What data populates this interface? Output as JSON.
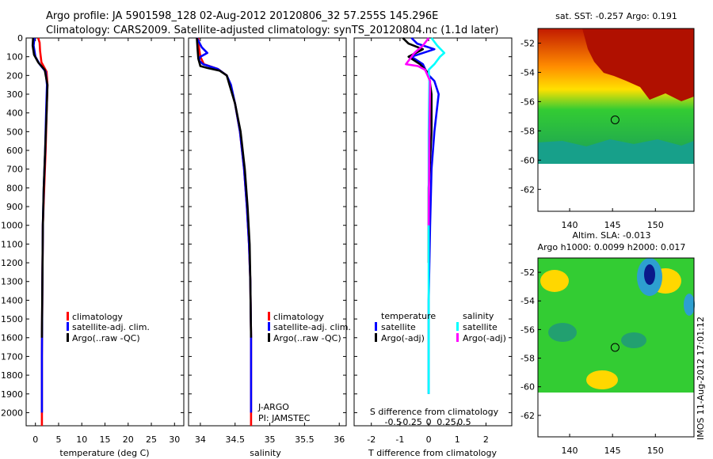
{
  "header": {
    "line1": "Argo profile: JA 5901598_128 02-Aug-2012 20120806_32 57.255S 145.296E",
    "line2": "Climatology: CARS2009. Satellite-adjusted climatology: synTS_20120804.nc (1.1d later)"
  },
  "stamp": "IMOS 11-Aug-2012 17:01:12",
  "colors": {
    "climatology": "#ff0000",
    "satellite_adj": "#0000ff",
    "argo": "#000000",
    "salinity_sat": "#00ffff",
    "salinity_argo": "#ff00ff"
  },
  "chart_data": [
    {
      "type": "line",
      "name": "temperature",
      "xlabel": "temperature (deg C)",
      "ylabel": "",
      "xlim": [
        -2,
        32
      ],
      "ylim": [
        2070,
        0
      ],
      "xticks": [
        "0",
        "5",
        "10",
        "15",
        "20",
        "25",
        "30"
      ],
      "yticks": [
        "0",
        "100",
        "200",
        "300",
        "400",
        "500",
        "600",
        "700",
        "800",
        "900",
        "1000",
        "1100",
        "1200",
        "1300",
        "1400",
        "1500",
        "1600",
        "1700",
        "1800",
        "1900",
        "2000"
      ],
      "legend": [
        "climatology",
        "satellite-adj. clim.",
        "Argo(..raw -QC)"
      ],
      "series": [
        {
          "name": "climatology",
          "color": "#ff0000",
          "x": [
            0.6,
            0.9,
            1.0,
            1.3,
            2.4,
            2.6,
            2.4,
            2.2,
            1.9,
            1.6,
            1.5,
            1.4,
            1.4
          ],
          "y": [
            0,
            25,
            70,
            130,
            180,
            250,
            400,
            600,
            800,
            1000,
            1300,
            1700,
            2070
          ]
        },
        {
          "name": "satellite-adj. clim.",
          "color": "#0000ff",
          "x": [
            -0.2,
            -0.4,
            0.0,
            0.9,
            2.2,
            2.5,
            2.3,
            2.1,
            1.8,
            1.6,
            1.5,
            1.4,
            1.4
          ],
          "y": [
            0,
            40,
            100,
            140,
            180,
            250,
            400,
            600,
            800,
            1000,
            1300,
            1700,
            2000
          ]
        },
        {
          "name": "Argo(..raw -QC)",
          "color": "#000000",
          "x": [
            -0.5,
            -0.6,
            -0.3,
            0.6,
            2.0,
            2.6,
            2.4,
            2.1,
            1.8,
            1.6,
            1.5,
            1.4
          ],
          "y": [
            0,
            40,
            90,
            130,
            170,
            250,
            400,
            600,
            800,
            1000,
            1300,
            1600
          ]
        }
      ]
    },
    {
      "type": "line",
      "name": "salinity",
      "xlabel": "salinity",
      "ylabel": "",
      "xlim": [
        33.83,
        36.1
      ],
      "ylim": [
        2070,
        0
      ],
      "xticks": [
        "34",
        "34.5",
        "35",
        "35.5",
        "36"
      ],
      "legend": [
        "climatology",
        "satellite-adj. clim.",
        "Argo(..raw -QC)"
      ],
      "annotation": [
        "J-ARGO",
        "PI: JAMSTEC"
      ],
      "series": [
        {
          "name": "climatology",
          "color": "#ff0000",
          "x": [
            33.97,
            33.98,
            34.0,
            34.05,
            34.25,
            34.38,
            34.43,
            34.5,
            34.57,
            34.63,
            34.67,
            34.7,
            34.72,
            34.73,
            34.73,
            34.73
          ],
          "y": [
            0,
            50,
            100,
            140,
            165,
            200,
            250,
            350,
            500,
            700,
            900,
            1100,
            1300,
            1600,
            1900,
            2070
          ]
        },
        {
          "name": "satellite-adj. clim.",
          "color": "#0000ff",
          "x": [
            33.95,
            34.02,
            34.1,
            34.0,
            33.98,
            34.04,
            34.25,
            34.38,
            34.44,
            34.5,
            34.57,
            34.63,
            34.67,
            34.7,
            34.72,
            34.73,
            34.73
          ],
          "y": [
            0,
            50,
            80,
            100,
            120,
            140,
            165,
            200,
            250,
            350,
            500,
            700,
            900,
            1100,
            1300,
            1600,
            2000
          ]
        },
        {
          "name": "Argo(..raw -QC)",
          "color": "#000000",
          "x": [
            33.95,
            33.96,
            33.97,
            34.0,
            34.1,
            34.28,
            34.38,
            34.42,
            34.5,
            34.58,
            34.64,
            34.68,
            34.71,
            34.72,
            34.73
          ],
          "y": [
            0,
            60,
            110,
            150,
            160,
            175,
            200,
            250,
            350,
            500,
            700,
            900,
            1100,
            1300,
            1600
          ]
        }
      ]
    },
    {
      "type": "line",
      "name": "difference",
      "xlabel": "T difference from climatology",
      "xlabel_top": "S difference from climatology",
      "xlim": [
        -2.6,
        2.9
      ],
      "ylim": [
        2070,
        0
      ],
      "xticks": [
        "-2",
        "-1",
        "0",
        "1",
        "2"
      ],
      "xticks_s": [
        "-0.5",
        "-0.25",
        "0",
        "0.25",
        "0.5"
      ],
      "legend_temperature_title": "temperature",
      "legend_salinity_title": "salinity",
      "legend_temperature": [
        "satellite",
        "Argo(-adj)"
      ],
      "legend_salinity": [
        "satellite",
        "Argo(-adj)"
      ],
      "series": [
        {
          "name": "T satellite",
          "color": "#0000ff",
          "x": [
            -0.6,
            -0.4,
            0.2,
            -0.6,
            -0.2,
            -0.05,
            0.2,
            0.35,
            0.2,
            0.1,
            0.05,
            0.0,
            0.0
          ],
          "y": [
            0,
            30,
            60,
            100,
            140,
            190,
            230,
            300,
            500,
            700,
            1000,
            1400,
            1900
          ]
        },
        {
          "name": "T Argo(-adj)",
          "color": "#000000",
          "x": [
            -0.9,
            -0.7,
            -0.2,
            -0.7,
            -0.3,
            0.0,
            0.1,
            0.1,
            0.0,
            0.0
          ],
          "y": [
            0,
            30,
            60,
            100,
            140,
            190,
            300,
            500,
            800,
            1200
          ]
        },
        {
          "name": "S satellite",
          "color": "#00ffff",
          "x": [
            0.04,
            0.12,
            0.22,
            0.16,
            0.08,
            0.0,
            0.01,
            0.0,
            0.0,
            0.0
          ],
          "y": [
            0,
            40,
            80,
            100,
            140,
            170,
            230,
            500,
            1000,
            1900
          ]
        },
        {
          "name": "S Argo(-adj)",
          "color": "#ff00ff",
          "x": [
            0.0,
            -0.08,
            -0.2,
            -0.32,
            -0.15,
            -0.05,
            0.02,
            0.01,
            0.0
          ],
          "y": [
            0,
            40,
            80,
            140,
            150,
            170,
            230,
            500,
            1000
          ]
        }
      ]
    },
    {
      "type": "heatmap",
      "name": "sat-sst",
      "title": "sat. SST: -0.257 Argo: 0.191",
      "xticks": [
        "140",
        "145",
        "150"
      ],
      "yticks": [
        "-52",
        "-54",
        "-56",
        "-58",
        "-60",
        "-62"
      ],
      "xlim": [
        136.3,
        154.5
      ],
      "ylim": [
        -63.5,
        -51
      ],
      "marker": [
        145.3,
        -57.25
      ]
    },
    {
      "type": "heatmap",
      "name": "altim-sla",
      "title_line1": "Altim. SLA: -0.013",
      "title_line2": "Argo h1000: 0.0099 h2000: 0.017",
      "xticks": [
        "140",
        "145",
        "150"
      ],
      "yticks": [
        "-52",
        "-54",
        "-56",
        "-58",
        "-60",
        "-62"
      ],
      "xlim": [
        136.3,
        154.5
      ],
      "ylim": [
        -63.5,
        -51
      ],
      "marker": [
        145.3,
        -57.25
      ]
    }
  ]
}
